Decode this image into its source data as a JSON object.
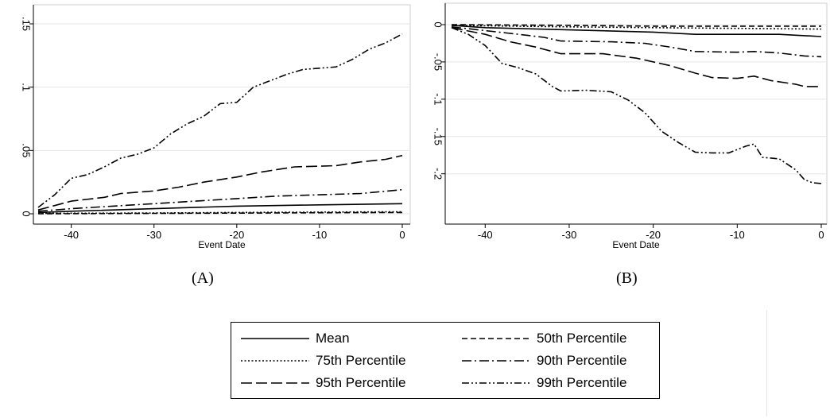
{
  "chart_data": [
    {
      "type": "line",
      "panel": "(A)",
      "xlabel": "Event Date",
      "ylabel": "",
      "xlim": [
        -44,
        0
      ],
      "ylim": [
        0,
        0.15
      ],
      "xticks": [
        -40,
        -30,
        -20,
        -10,
        0
      ],
      "xtick_labels": [
        "-40",
        "-30",
        "-20",
        "-10",
        "0"
      ],
      "yticks": [
        0,
        0.05,
        0.1,
        0.15
      ],
      "ytick_labels": [
        "0",
        ".05",
        ".1",
        ".15"
      ],
      "grid": "horizontal",
      "series": [
        {
          "name": "Mean",
          "style": "solid",
          "points": [
            [
              -44,
              0.001
            ],
            [
              -40,
              0.002
            ],
            [
              -30,
              0.004
            ],
            [
              -20,
              0.006
            ],
            [
              -10,
              0.007
            ],
            [
              0,
              0.008
            ]
          ]
        },
        {
          "name": "50th Percentile",
          "style": "dash",
          "points": [
            [
              -44,
              0.0
            ],
            [
              -30,
              0.0003
            ],
            [
              -20,
              0.0005
            ],
            [
              -10,
              0.0008
            ],
            [
              0,
              0.001
            ]
          ]
        },
        {
          "name": "75th Percentile",
          "style": "dot",
          "points": [
            [
              -44,
              0.0003
            ],
            [
              -30,
              0.0006
            ],
            [
              -20,
              0.001
            ],
            [
              -10,
              0.0013
            ],
            [
              0,
              0.0016
            ]
          ]
        },
        {
          "name": "90th Percentile",
          "style": "dashdot",
          "points": [
            [
              -44,
              0.002
            ],
            [
              -40,
              0.004
            ],
            [
              -35,
              0.006
            ],
            [
              -30,
              0.008
            ],
            [
              -25,
              0.01
            ],
            [
              -20,
              0.012
            ],
            [
              -15,
              0.014
            ],
            [
              -10,
              0.015
            ],
            [
              -5,
              0.016
            ],
            [
              0,
              0.019
            ]
          ]
        },
        {
          "name": "95th Percentile",
          "style": "longdash",
          "points": [
            [
              -44,
              0.003
            ],
            [
              -40,
              0.01
            ],
            [
              -36,
              0.013
            ],
            [
              -34,
              0.016
            ],
            [
              -30,
              0.018
            ],
            [
              -27,
              0.021
            ],
            [
              -24,
              0.025
            ],
            [
              -20,
              0.029
            ],
            [
              -17,
              0.033
            ],
            [
              -13,
              0.037
            ],
            [
              -8,
              0.038
            ],
            [
              -5,
              0.041
            ],
            [
              -2,
              0.043
            ],
            [
              0,
              0.046
            ]
          ]
        },
        {
          "name": "99th Percentile",
          "style": "dashdotdot",
          "points": [
            [
              -44,
              0.005
            ],
            [
              -42,
              0.015
            ],
            [
              -40,
              0.028
            ],
            [
              -38,
              0.031
            ],
            [
              -36,
              0.037
            ],
            [
              -34,
              0.044
            ],
            [
              -32,
              0.047
            ],
            [
              -30,
              0.052
            ],
            [
              -28,
              0.063
            ],
            [
              -26,
              0.071
            ],
            [
              -24,
              0.077
            ],
            [
              -22,
              0.087
            ],
            [
              -20,
              0.088
            ],
            [
              -18,
              0.1
            ],
            [
              -16,
              0.105
            ],
            [
              -14,
              0.11
            ],
            [
              -12,
              0.114
            ],
            [
              -10,
              0.115
            ],
            [
              -8,
              0.116
            ],
            [
              -6,
              0.122
            ],
            [
              -4,
              0.13
            ],
            [
              -2,
              0.135
            ],
            [
              0,
              0.142
            ]
          ]
        }
      ]
    },
    {
      "type": "line",
      "panel": "(B)",
      "xlabel": "Event Date",
      "ylabel": "",
      "xlim": [
        -44,
        0
      ],
      "ylim": [
        -0.26,
        0
      ],
      "xticks": [
        -40,
        -30,
        -20,
        -10,
        0
      ],
      "xtick_labels": [
        "-40",
        "-30",
        "-20",
        "-10",
        "0"
      ],
      "yticks": [
        0,
        -0.05,
        -0.1,
        -0.15,
        -0.2
      ],
      "ytick_labels": [
        "0",
        "-.05",
        "-.1",
        "-.15",
        "-.2"
      ],
      "grid": "horizontal",
      "series": [
        {
          "name": "Mean",
          "style": "solid",
          "points": [
            [
              -44,
              -0.001
            ],
            [
              -40,
              -0.004
            ],
            [
              -30,
              -0.007
            ],
            [
              -20,
              -0.01
            ],
            [
              -15,
              -0.013
            ],
            [
              -10,
              -0.013
            ],
            [
              -5,
              -0.013
            ],
            [
              0,
              -0.016
            ]
          ]
        },
        {
          "name": "50th Percentile",
          "style": "dash",
          "points": [
            [
              -44,
              0.0
            ],
            [
              -30,
              -0.001
            ],
            [
              -20,
              -0.002
            ],
            [
              -10,
              -0.002
            ],
            [
              0,
              -0.002
            ]
          ]
        },
        {
          "name": "75th Percentile",
          "style": "dot",
          "points": [
            [
              -44,
              -0.001
            ],
            [
              -30,
              -0.003
            ],
            [
              -20,
              -0.004
            ],
            [
              -10,
              -0.005
            ],
            [
              0,
              -0.006
            ]
          ]
        },
        {
          "name": "90th Percentile",
          "style": "dashdot",
          "points": [
            [
              -44,
              -0.003
            ],
            [
              -40,
              -0.008
            ],
            [
              -36,
              -0.013
            ],
            [
              -33,
              -0.017
            ],
            [
              -31,
              -0.022
            ],
            [
              -25,
              -0.023
            ],
            [
              -21,
              -0.025
            ],
            [
              -18,
              -0.03
            ],
            [
              -15,
              -0.036
            ],
            [
              -10,
              -0.037
            ],
            [
              -8,
              -0.036
            ],
            [
              -5,
              -0.038
            ],
            [
              -2,
              -0.042
            ],
            [
              0,
              -0.043
            ]
          ]
        },
        {
          "name": "95th Percentile",
          "style": "longdash",
          "points": [
            [
              -44,
              -0.004
            ],
            [
              -40,
              -0.013
            ],
            [
              -37,
              -0.023
            ],
            [
              -34,
              -0.03
            ],
            [
              -31,
              -0.039
            ],
            [
              -26,
              -0.039
            ],
            [
              -22,
              -0.045
            ],
            [
              -18,
              -0.055
            ],
            [
              -15,
              -0.065
            ],
            [
              -13,
              -0.071
            ],
            [
              -10,
              -0.072
            ],
            [
              -8,
              -0.069
            ],
            [
              -6,
              -0.075
            ],
            [
              -3,
              -0.08
            ],
            [
              -2,
              -0.083
            ],
            [
              0,
              -0.083
            ]
          ]
        },
        {
          "name": "99th Percentile",
          "style": "dashdotdot",
          "points": [
            [
              -44,
              -0.004
            ],
            [
              -42,
              -0.013
            ],
            [
              -40,
              -0.028
            ],
            [
              -38,
              -0.052
            ],
            [
              -36,
              -0.058
            ],
            [
              -34,
              -0.066
            ],
            [
              -32,
              -0.083
            ],
            [
              -31,
              -0.089
            ],
            [
              -28,
              -0.088
            ],
            [
              -25,
              -0.09
            ],
            [
              -23,
              -0.101
            ],
            [
              -21,
              -0.118
            ],
            [
              -19,
              -0.143
            ],
            [
              -17,
              -0.158
            ],
            [
              -15,
              -0.171
            ],
            [
              -13,
              -0.172
            ],
            [
              -11,
              -0.172
            ],
            [
              -9,
              -0.163
            ],
            [
              -8,
              -0.16
            ],
            [
              -7,
              -0.178
            ],
            [
              -5,
              -0.18
            ],
            [
              -3,
              -0.195
            ],
            [
              -2,
              -0.208
            ],
            [
              -1,
              -0.212
            ],
            [
              0,
              -0.213
            ]
          ]
        }
      ]
    }
  ],
  "captions": {
    "a": "(A)",
    "b": "(B)"
  },
  "legend": [
    {
      "label": "Mean",
      "style": "solid"
    },
    {
      "label": "50th Percentile",
      "style": "dash"
    },
    {
      "label": "75th Percentile",
      "style": "dot"
    },
    {
      "label": "90th Percentile",
      "style": "dashdot"
    },
    {
      "label": "95th Percentile",
      "style": "longdash"
    },
    {
      "label": "99th Percentile",
      "style": "dashdotdot"
    }
  ],
  "colors": {
    "line": "#000000",
    "grid": "#e5e5e5",
    "axis": "#000000"
  }
}
